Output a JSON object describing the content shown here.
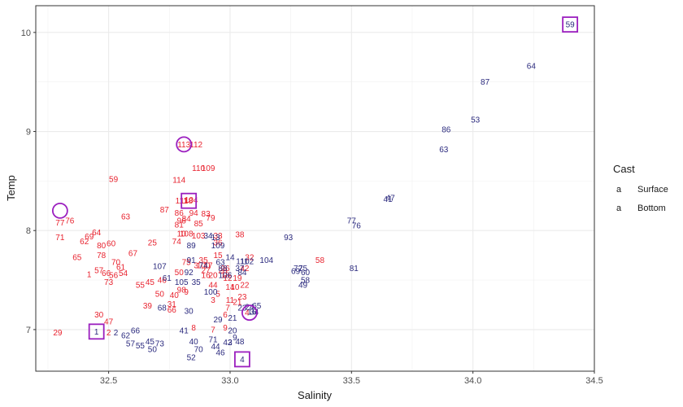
{
  "chart_data": {
    "type": "scatter",
    "title": "",
    "xlabel": "Salinity",
    "ylabel": "Temp",
    "xlim": [
      32.2,
      34.5
    ],
    "ylim": [
      6.58,
      10.27
    ],
    "xticks": [
      "32.5",
      "33.0",
      "33.5",
      "34.0",
      "34.5"
    ],
    "yticks": [
      "7",
      "8",
      "9",
      "10"
    ],
    "grid": true,
    "legend": {
      "title": "Cast",
      "position": "right",
      "key_glyph": "a"
    },
    "series": [
      {
        "name": "Surface",
        "color": "#e8232f",
        "points": [
          {
            "x": 32.29,
            "y": 6.97,
            "label": "29"
          },
          {
            "x": 32.3,
            "y": 7.93,
            "label": "71"
          },
          {
            "x": 32.3,
            "y": 8.08,
            "label": "77"
          },
          {
            "x": 32.34,
            "y": 8.1,
            "label": "76"
          },
          {
            "x": 32.37,
            "y": 7.73,
            "label": "65"
          },
          {
            "x": 32.4,
            "y": 7.89,
            "label": "62"
          },
          {
            "x": 32.42,
            "y": 7.94,
            "label": "69"
          },
          {
            "x": 32.45,
            "y": 7.98,
            "label": "64"
          },
          {
            "x": 32.42,
            "y": 7.56,
            "label": "1"
          },
          {
            "x": 32.46,
            "y": 7.6,
            "label": "57"
          },
          {
            "x": 32.46,
            "y": 7.15,
            "label": "30"
          },
          {
            "x": 32.47,
            "y": 7.85,
            "label": "80"
          },
          {
            "x": 32.51,
            "y": 7.87,
            "label": "60"
          },
          {
            "x": 32.47,
            "y": 7.75,
            "label": "78"
          },
          {
            "x": 32.53,
            "y": 7.68,
            "label": "70"
          },
          {
            "x": 32.5,
            "y": 7.08,
            "label": "47"
          },
          {
            "x": 32.49,
            "y": 7.57,
            "label": "66"
          },
          {
            "x": 32.55,
            "y": 7.63,
            "label": "61"
          },
          {
            "x": 32.5,
            "y": 6.97,
            "label": "2"
          },
          {
            "x": 32.52,
            "y": 7.55,
            "label": "56"
          },
          {
            "x": 32.5,
            "y": 7.48,
            "label": "73"
          },
          {
            "x": 32.56,
            "y": 7.57,
            "label": "54"
          },
          {
            "x": 32.57,
            "y": 8.14,
            "label": "63"
          },
          {
            "x": 32.52,
            "y": 8.52,
            "label": "59"
          },
          {
            "x": 32.6,
            "y": 7.77,
            "label": "67"
          },
          {
            "x": 32.63,
            "y": 7.45,
            "label": "55"
          },
          {
            "x": 32.67,
            "y": 7.48,
            "label": "45"
          },
          {
            "x": 32.66,
            "y": 7.24,
            "label": "39"
          },
          {
            "x": 32.68,
            "y": 7.88,
            "label": "25"
          },
          {
            "x": 32.71,
            "y": 7.36,
            "label": "50"
          },
          {
            "x": 32.72,
            "y": 7.5,
            "label": "46"
          },
          {
            "x": 32.73,
            "y": 8.21,
            "label": "87"
          },
          {
            "x": 32.79,
            "y": 8.51,
            "label": "114"
          },
          {
            "x": 32.77,
            "y": 7.35,
            "label": "40"
          },
          {
            "x": 32.76,
            "y": 7.2,
            "label": "66"
          },
          {
            "x": 32.76,
            "y": 7.26,
            "label": "31"
          },
          {
            "x": 32.78,
            "y": 7.89,
            "label": "74"
          },
          {
            "x": 32.79,
            "y": 8.06,
            "label": "81"
          },
          {
            "x": 32.79,
            "y": 8.18,
            "label": "86"
          },
          {
            "x": 32.8,
            "y": 7.97,
            "label": "10"
          },
          {
            "x": 32.82,
            "y": 7.97,
            "label": "108"
          },
          {
            "x": 32.82,
            "y": 8.3,
            "label": "118"
          },
          {
            "x": 32.82,
            "y": 8.12,
            "label": "84"
          },
          {
            "x": 32.79,
            "y": 7.58,
            "label": "50"
          },
          {
            "x": 32.8,
            "y": 7.4,
            "label": "98"
          },
          {
            "x": 32.8,
            "y": 8.3,
            "label": "111"
          },
          {
            "x": 32.8,
            "y": 8.1,
            "label": "96"
          },
          {
            "x": 32.82,
            "y": 7.68,
            "label": "75"
          },
          {
            "x": 32.84,
            "y": 8.31,
            "label": "104"
          },
          {
            "x": 32.87,
            "y": 7.95,
            "label": "103"
          },
          {
            "x": 32.87,
            "y": 8.07,
            "label": "85"
          },
          {
            "x": 32.85,
            "y": 8.18,
            "label": "94"
          },
          {
            "x": 32.81,
            "y": 8.87,
            "label": "113"
          },
          {
            "x": 32.86,
            "y": 8.87,
            "label": "112"
          },
          {
            "x": 32.87,
            "y": 8.63,
            "label": "110"
          },
          {
            "x": 32.91,
            "y": 8.63,
            "label": "109"
          },
          {
            "x": 32.9,
            "y": 8.17,
            "label": "83"
          },
          {
            "x": 32.92,
            "y": 8.13,
            "label": "79"
          },
          {
            "x": 32.86,
            "y": 7.65,
            "label": "3"
          },
          {
            "x": 32.89,
            "y": 7.65,
            "label": "100"
          },
          {
            "x": 32.95,
            "y": 7.88,
            "label": "36"
          },
          {
            "x": 32.95,
            "y": 7.95,
            "label": "33"
          },
          {
            "x": 32.97,
            "y": 7.6,
            "label": "28"
          },
          {
            "x": 32.98,
            "y": 7.62,
            "label": "26"
          },
          {
            "x": 32.98,
            "y": 7.55,
            "label": "18"
          },
          {
            "x": 32.99,
            "y": 7.52,
            "label": "12"
          },
          {
            "x": 32.93,
            "y": 7.45,
            "label": "44"
          },
          {
            "x": 32.9,
            "y": 7.6,
            "label": "27"
          },
          {
            "x": 32.89,
            "y": 7.7,
            "label": "35"
          },
          {
            "x": 32.91,
            "y": 7.65,
            "label": "17"
          },
          {
            "x": 32.95,
            "y": 7.75,
            "label": "15"
          },
          {
            "x": 32.93,
            "y": 7.55,
            "label": "20"
          },
          {
            "x": 33.03,
            "y": 7.52,
            "label": "19"
          },
          {
            "x": 33.03,
            "y": 7.28,
            "label": "21"
          },
          {
            "x": 33.05,
            "y": 7.33,
            "label": "23"
          },
          {
            "x": 33.06,
            "y": 7.45,
            "label": "22"
          },
          {
            "x": 33.02,
            "y": 7.43,
            "label": "10"
          },
          {
            "x": 33.0,
            "y": 7.43,
            "label": "14"
          },
          {
            "x": 33.08,
            "y": 7.73,
            "label": "32"
          },
          {
            "x": 33.06,
            "y": 7.62,
            "label": "42"
          },
          {
            "x": 33.04,
            "y": 7.96,
            "label": "38"
          },
          {
            "x": 33.0,
            "y": 7.3,
            "label": "11"
          },
          {
            "x": 32.99,
            "y": 7.22,
            "label": "7"
          },
          {
            "x": 32.98,
            "y": 7.15,
            "label": "6"
          },
          {
            "x": 32.95,
            "y": 7.36,
            "label": "5"
          },
          {
            "x": 33.07,
            "y": 7.17,
            "label": "4"
          },
          {
            "x": 32.98,
            "y": 7.02,
            "label": "9"
          },
          {
            "x": 32.93,
            "y": 7.0,
            "label": "7"
          },
          {
            "x": 32.85,
            "y": 7.02,
            "label": "8"
          },
          {
            "x": 32.82,
            "y": 7.38,
            "label": "9"
          },
          {
            "x": 32.93,
            "y": 7.3,
            "label": "3"
          },
          {
            "x": 32.9,
            "y": 7.55,
            "label": "16"
          },
          {
            "x": 33.37,
            "y": 7.7,
            "label": "58"
          }
        ]
      },
      {
        "name": "Bottom",
        "color": "#2b2a7e",
        "points": [
          {
            "x": 32.45,
            "y": 6.98,
            "label": "1"
          },
          {
            "x": 32.53,
            "y": 6.97,
            "label": "2"
          },
          {
            "x": 32.57,
            "y": 6.94,
            "label": "62"
          },
          {
            "x": 32.61,
            "y": 6.99,
            "label": "66"
          },
          {
            "x": 32.59,
            "y": 6.86,
            "label": "57"
          },
          {
            "x": 32.63,
            "y": 6.84,
            "label": "55"
          },
          {
            "x": 32.67,
            "y": 6.88,
            "label": "45"
          },
          {
            "x": 32.68,
            "y": 6.8,
            "label": "50"
          },
          {
            "x": 32.71,
            "y": 6.86,
            "label": "73"
          },
          {
            "x": 32.72,
            "y": 7.22,
            "label": "68"
          },
          {
            "x": 32.74,
            "y": 7.52,
            "label": "61"
          },
          {
            "x": 32.71,
            "y": 7.64,
            "label": "107"
          },
          {
            "x": 32.81,
            "y": 6.99,
            "label": "41"
          },
          {
            "x": 32.83,
            "y": 7.19,
            "label": "30"
          },
          {
            "x": 32.8,
            "y": 7.48,
            "label": "105"
          },
          {
            "x": 32.83,
            "y": 7.58,
            "label": "92"
          },
          {
            "x": 32.84,
            "y": 7.7,
            "label": "91"
          },
          {
            "x": 32.84,
            "y": 7.85,
            "label": "89"
          },
          {
            "x": 32.85,
            "y": 6.88,
            "label": "40"
          },
          {
            "x": 32.84,
            "y": 6.72,
            "label": "52"
          },
          {
            "x": 32.87,
            "y": 6.8,
            "label": "70"
          },
          {
            "x": 32.86,
            "y": 7.48,
            "label": "35"
          },
          {
            "x": 32.89,
            "y": 7.65,
            "label": "74"
          },
          {
            "x": 32.91,
            "y": 7.95,
            "label": "34"
          },
          {
            "x": 32.94,
            "y": 7.93,
            "label": "13"
          },
          {
            "x": 32.95,
            "y": 7.85,
            "label": "109"
          },
          {
            "x": 32.96,
            "y": 7.68,
            "label": "63"
          },
          {
            "x": 32.97,
            "y": 7.62,
            "label": "88"
          },
          {
            "x": 32.98,
            "y": 7.55,
            "label": "106"
          },
          {
            "x": 32.92,
            "y": 7.38,
            "label": "100"
          },
          {
            "x": 32.93,
            "y": 6.9,
            "label": "71"
          },
          {
            "x": 32.94,
            "y": 6.83,
            "label": "44"
          },
          {
            "x": 32.96,
            "y": 6.77,
            "label": "46"
          },
          {
            "x": 32.99,
            "y": 6.87,
            "label": "42"
          },
          {
            "x": 32.95,
            "y": 7.1,
            "label": "29"
          },
          {
            "x": 33.01,
            "y": 7.12,
            "label": "21"
          },
          {
            "x": 33.0,
            "y": 6.87,
            "label": "3"
          },
          {
            "x": 33.02,
            "y": 6.92,
            "label": "9"
          },
          {
            "x": 33.01,
            "y": 6.99,
            "label": "20"
          },
          {
            "x": 33.04,
            "y": 6.88,
            "label": "48"
          },
          {
            "x": 33.05,
            "y": 6.7,
            "label": "4"
          },
          {
            "x": 33.05,
            "y": 7.22,
            "label": "23"
          },
          {
            "x": 33.08,
            "y": 7.23,
            "label": "24"
          },
          {
            "x": 33.1,
            "y": 7.18,
            "label": "34"
          },
          {
            "x": 33.11,
            "y": 7.24,
            "label": "65"
          },
          {
            "x": 33.09,
            "y": 7.18,
            "label": "16"
          },
          {
            "x": 33.04,
            "y": 7.62,
            "label": "37"
          },
          {
            "x": 33.05,
            "y": 7.69,
            "label": "111"
          },
          {
            "x": 33.05,
            "y": 7.58,
            "label": "84"
          },
          {
            "x": 33.0,
            "y": 7.73,
            "label": "14"
          },
          {
            "x": 33.07,
            "y": 7.69,
            "label": "102"
          },
          {
            "x": 33.15,
            "y": 7.7,
            "label": "104"
          },
          {
            "x": 33.24,
            "y": 7.93,
            "label": "93"
          },
          {
            "x": 33.27,
            "y": 7.59,
            "label": "69"
          },
          {
            "x": 33.28,
            "y": 7.62,
            "label": "72"
          },
          {
            "x": 33.3,
            "y": 7.62,
            "label": "75"
          },
          {
            "x": 33.31,
            "y": 7.58,
            "label": "60"
          },
          {
            "x": 33.31,
            "y": 7.5,
            "label": "58"
          },
          {
            "x": 33.3,
            "y": 7.45,
            "label": "49"
          },
          {
            "x": 33.51,
            "y": 7.62,
            "label": "81"
          },
          {
            "x": 33.5,
            "y": 8.1,
            "label": "77"
          },
          {
            "x": 33.52,
            "y": 8.05,
            "label": "76"
          },
          {
            "x": 33.65,
            "y": 8.32,
            "label": "41"
          },
          {
            "x": 33.66,
            "y": 8.33,
            "label": "47"
          },
          {
            "x": 33.88,
            "y": 8.82,
            "label": "63"
          },
          {
            "x": 33.89,
            "y": 9.02,
            "label": "86"
          },
          {
            "x": 34.01,
            "y": 9.12,
            "label": "53"
          },
          {
            "x": 34.05,
            "y": 9.5,
            "label": "87"
          },
          {
            "x": 34.24,
            "y": 9.66,
            "label": "64"
          },
          {
            "x": 34.4,
            "y": 10.08,
            "label": "59"
          }
        ]
      }
    ],
    "highlights": [
      {
        "shape": "circle",
        "x": 32.3,
        "y": 8.2,
        "series": "Surface",
        "label": "72"
      },
      {
        "shape": "circle",
        "x": 32.81,
        "y": 8.87,
        "series": "Surface",
        "label": "113"
      },
      {
        "shape": "circle",
        "x": 33.08,
        "y": 7.17,
        "series": "Surface",
        "label": "4"
      },
      {
        "shape": "square",
        "x": 32.83,
        "y": 8.3,
        "series": "Bottom",
        "label": "118"
      },
      {
        "shape": "square",
        "x": 32.45,
        "y": 6.98,
        "series": "Bottom",
        "label": "1"
      },
      {
        "shape": "square",
        "x": 33.05,
        "y": 6.7,
        "series": "Bottom",
        "label": "4"
      },
      {
        "shape": "square",
        "x": 34.4,
        "y": 10.08,
        "series": "Bottom",
        "label": "59"
      }
    ],
    "highlight_color": "#9b1fbf"
  }
}
